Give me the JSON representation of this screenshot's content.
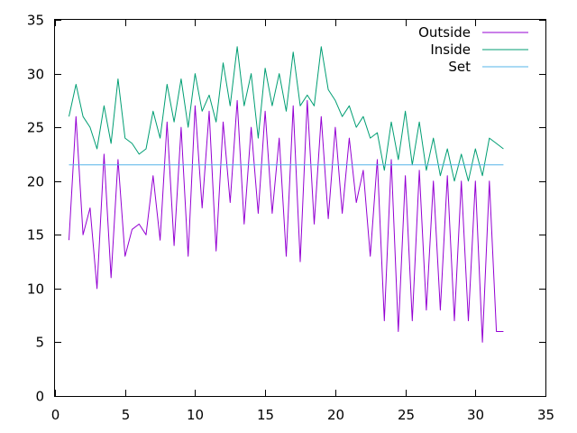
{
  "chart_data": {
    "type": "line",
    "title": "",
    "xlabel": "",
    "ylabel": "",
    "xlim": [
      0,
      35
    ],
    "ylim": [
      0,
      35
    ],
    "x_ticks": [
      0,
      5,
      10,
      15,
      20,
      25,
      30,
      35
    ],
    "y_ticks": [
      0,
      5,
      10,
      15,
      20,
      25,
      30,
      35
    ],
    "grid": false,
    "legend_position": "top-right",
    "series": [
      {
        "name": "Outside",
        "color": "#9400d3",
        "x": [
          1.0,
          1.5,
          2.0,
          2.5,
          3.0,
          3.5,
          4.0,
          4.5,
          5.0,
          5.5,
          6.0,
          6.5,
          7.0,
          7.5,
          8.0,
          8.5,
          9.0,
          9.5,
          10.0,
          10.5,
          11.0,
          11.5,
          12.0,
          12.5,
          13.0,
          13.5,
          14.0,
          14.5,
          15.0,
          15.5,
          16.0,
          16.5,
          17.0,
          17.5,
          18.0,
          18.5,
          19.0,
          19.5,
          20.0,
          20.5,
          21.0,
          21.5,
          22.0,
          22.5,
          23.0,
          23.5,
          24.0,
          24.5,
          25.0,
          25.5,
          26.0,
          26.5,
          27.0,
          27.5,
          28.0,
          28.5,
          29.0,
          29.5,
          30.0,
          30.5,
          31.0,
          31.5,
          32.0
        ],
        "y": [
          14.5,
          26.0,
          15.0,
          17.5,
          10.0,
          22.5,
          11.0,
          22.0,
          13.0,
          15.5,
          16.0,
          15.0,
          20.5,
          14.5,
          25.5,
          14.0,
          25.0,
          13.0,
          27.0,
          17.5,
          26.5,
          13.5,
          25.5,
          18.0,
          27.5,
          16.0,
          25.0,
          17.0,
          26.5,
          17.0,
          24.0,
          13.0,
          27.0,
          12.5,
          27.5,
          16.0,
          26.0,
          16.5,
          25.0,
          17.0,
          24.0,
          18.0,
          21.0,
          13.0,
          22.0,
          7.0,
          22.0,
          6.0,
          20.5,
          7.0,
          21.0,
          8.0,
          20.0,
          8.0,
          20.5,
          7.0,
          20.0,
          7.0,
          20.0,
          5.0,
          20.0,
          6.0,
          6.0
        ]
      },
      {
        "name": "Inside",
        "color": "#009e73",
        "x": [
          1.0,
          1.5,
          2.0,
          2.5,
          3.0,
          3.5,
          4.0,
          4.5,
          5.0,
          5.5,
          6.0,
          6.5,
          7.0,
          7.5,
          8.0,
          8.5,
          9.0,
          9.5,
          10.0,
          10.5,
          11.0,
          11.5,
          12.0,
          12.5,
          13.0,
          13.5,
          14.0,
          14.5,
          15.0,
          15.5,
          16.0,
          16.5,
          17.0,
          17.5,
          18.0,
          18.5,
          19.0,
          19.5,
          20.0,
          20.5,
          21.0,
          21.5,
          22.0,
          22.5,
          23.0,
          23.5,
          24.0,
          24.5,
          25.0,
          25.5,
          26.0,
          26.5,
          27.0,
          27.5,
          28.0,
          28.5,
          29.0,
          29.5,
          30.0,
          30.5,
          31.0,
          31.5,
          32.0
        ],
        "y": [
          26.0,
          29.0,
          26.0,
          25.0,
          23.0,
          27.0,
          23.5,
          29.5,
          24.0,
          23.5,
          22.5,
          23.0,
          26.5,
          24.0,
          29.0,
          25.5,
          29.5,
          25.0,
          30.0,
          26.5,
          28.0,
          25.5,
          31.0,
          27.0,
          32.5,
          27.0,
          30.0,
          24.0,
          30.5,
          27.0,
          30.0,
          26.5,
          32.0,
          27.0,
          28.0,
          27.0,
          32.5,
          28.5,
          27.5,
          26.0,
          27.0,
          25.0,
          26.0,
          24.0,
          24.5,
          21.0,
          25.5,
          22.0,
          26.5,
          21.5,
          25.5,
          21.0,
          24.0,
          20.5,
          23.0,
          20.0,
          22.5,
          20.0,
          23.0,
          20.5,
          24.0,
          23.5,
          23.0
        ]
      },
      {
        "name": "Set",
        "color": "#56b4e9",
        "x": [
          1.0,
          5.0,
          10.0,
          15.0,
          20.0,
          22.0,
          25.0,
          30.0,
          32.0
        ],
        "y": [
          21.5,
          21.5,
          21.5,
          21.5,
          21.5,
          21.5,
          21.5,
          21.5,
          21.5
        ]
      }
    ]
  }
}
